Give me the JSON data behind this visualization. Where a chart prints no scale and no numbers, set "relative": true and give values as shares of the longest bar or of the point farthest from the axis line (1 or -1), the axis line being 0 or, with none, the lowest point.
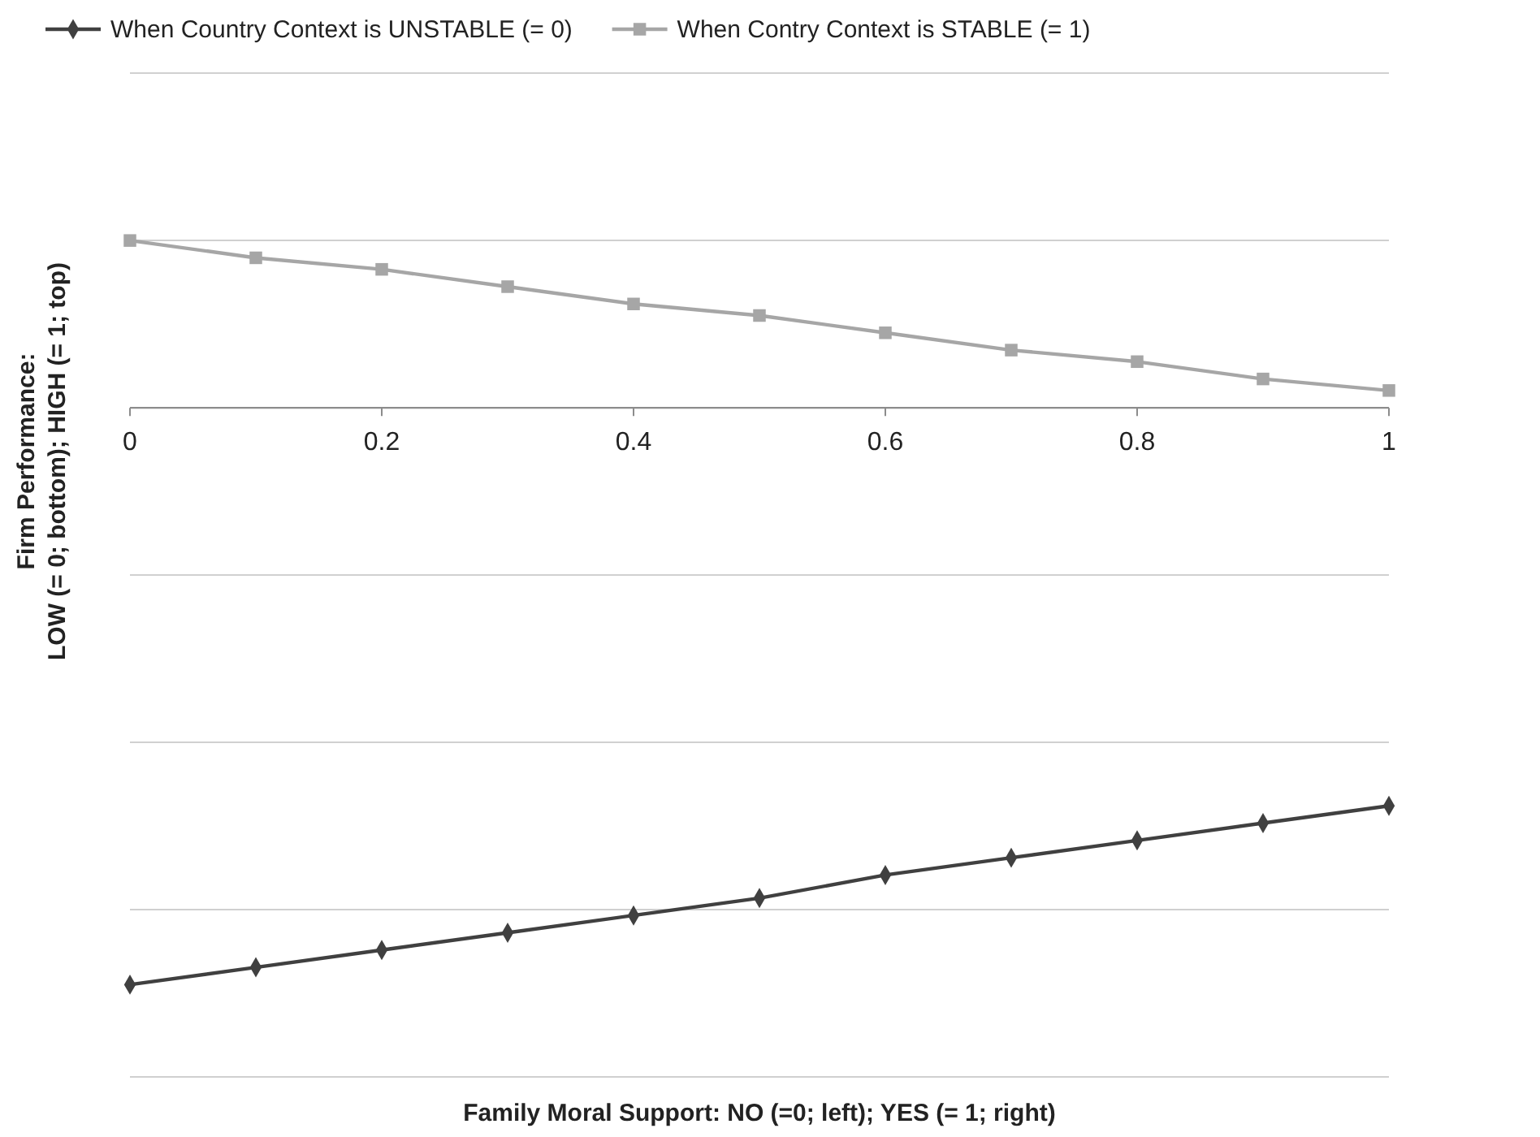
{
  "chart_data": {
    "type": "line",
    "relative": true,
    "xlabel": "Family Moral Support: NO (=0; left); YES (= 1; right)",
    "ylabel": "Firm Performance:\nLOW (= 0; bottom); HIGH (= 1; top)",
    "x": [
      0,
      0.1,
      0.2,
      0.3,
      0.4,
      0.5,
      0.6,
      0.7,
      0.8,
      0.9,
      1
    ],
    "xlim": [
      0,
      1
    ],
    "xticks": [
      0,
      0.2,
      0.4,
      0.6,
      0.8,
      1
    ],
    "grid": "y",
    "legend": "top",
    "tick_labels": "x",
    "series": [
      {
        "name": "When Country Context is UNSTABLE (= 0)",
        "color": "#404040",
        "marker": "diamond",
        "values": [
          -1,
          -0.97,
          -0.94,
          -0.91,
          -0.88,
          -0.85,
          -0.81,
          -0.78,
          -0.75,
          -0.72,
          -0.69
        ]
      },
      {
        "name": "When Contry Context is STABLE (= 1)",
        "color": "#a6a6a6",
        "marker": "square",
        "values": [
          0.29,
          0.26,
          0.24,
          0.21,
          0.18,
          0.16,
          0.13,
          0.1,
          0.08,
          0.05,
          0.03
        ]
      }
    ]
  }
}
